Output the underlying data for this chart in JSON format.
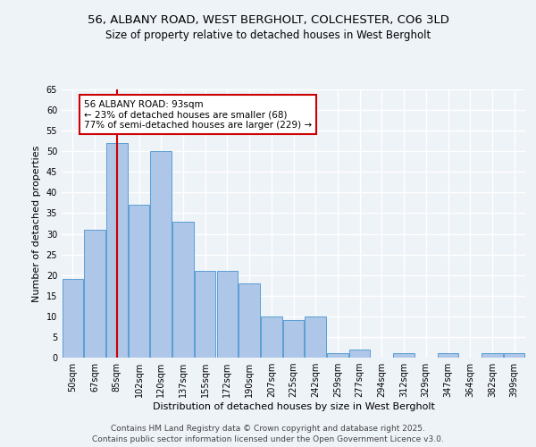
{
  "title_line1": "56, ALBANY ROAD, WEST BERGHOLT, COLCHESTER, CO6 3LD",
  "title_line2": "Size of property relative to detached houses in West Bergholt",
  "xlabel": "Distribution of detached houses by size in West Bergholt",
  "ylabel": "Number of detached properties",
  "categories": [
    "50sqm",
    "67sqm",
    "85sqm",
    "102sqm",
    "120sqm",
    "137sqm",
    "155sqm",
    "172sqm",
    "190sqm",
    "207sqm",
    "225sqm",
    "242sqm",
    "259sqm",
    "277sqm",
    "294sqm",
    "312sqm",
    "329sqm",
    "347sqm",
    "364sqm",
    "382sqm",
    "399sqm"
  ],
  "values": [
    19,
    31,
    52,
    37,
    50,
    33,
    21,
    21,
    18,
    10,
    9,
    10,
    1,
    2,
    0,
    1,
    0,
    1,
    0,
    1,
    1
  ],
  "bar_color": "#aec6e8",
  "bar_edge_color": "#5a9fd4",
  "vline_x": 2,
  "vline_color": "#cc0000",
  "annotation_text": "56 ALBANY ROAD: 93sqm\n← 23% of detached houses are smaller (68)\n77% of semi-detached houses are larger (229) →",
  "annotation_box_color": "#ffffff",
  "annotation_box_edge_color": "#cc0000",
  "ylim": [
    0,
    65
  ],
  "yticks": [
    0,
    5,
    10,
    15,
    20,
    25,
    30,
    35,
    40,
    45,
    50,
    55,
    60,
    65
  ],
  "background_color": "#eef3f8",
  "plot_background_color": "#eef3f8",
  "grid_color": "#ffffff",
  "footer_line1": "Contains HM Land Registry data © Crown copyright and database right 2025.",
  "footer_line2": "Contains public sector information licensed under the Open Government Licence v3.0.",
  "title_fontsize": 9.5,
  "subtitle_fontsize": 8.5,
  "axis_label_fontsize": 8,
  "tick_fontsize": 7,
  "annotation_fontsize": 7.5,
  "footer_fontsize": 6.5
}
